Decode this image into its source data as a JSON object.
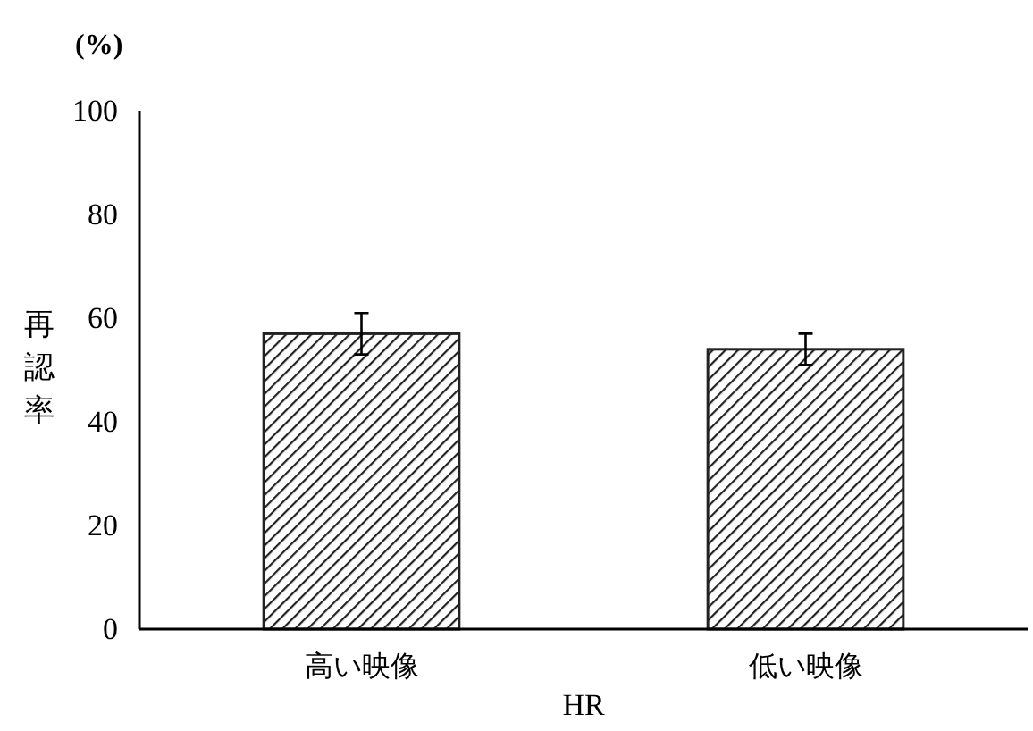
{
  "chart_data": {
    "type": "bar",
    "categories": [
      "高い映像",
      "低い映像"
    ],
    "values": [
      57,
      54
    ],
    "errors": [
      4,
      3
    ],
    "color": "#222222",
    "xlabel": "HR",
    "ylabel": "再認率",
    "annotations": [
      "(%)"
    ],
    "ylim": [
      0,
      100
    ],
    "yticks": [
      0,
      20,
      40,
      60,
      80,
      100
    ],
    "grid": false
  }
}
